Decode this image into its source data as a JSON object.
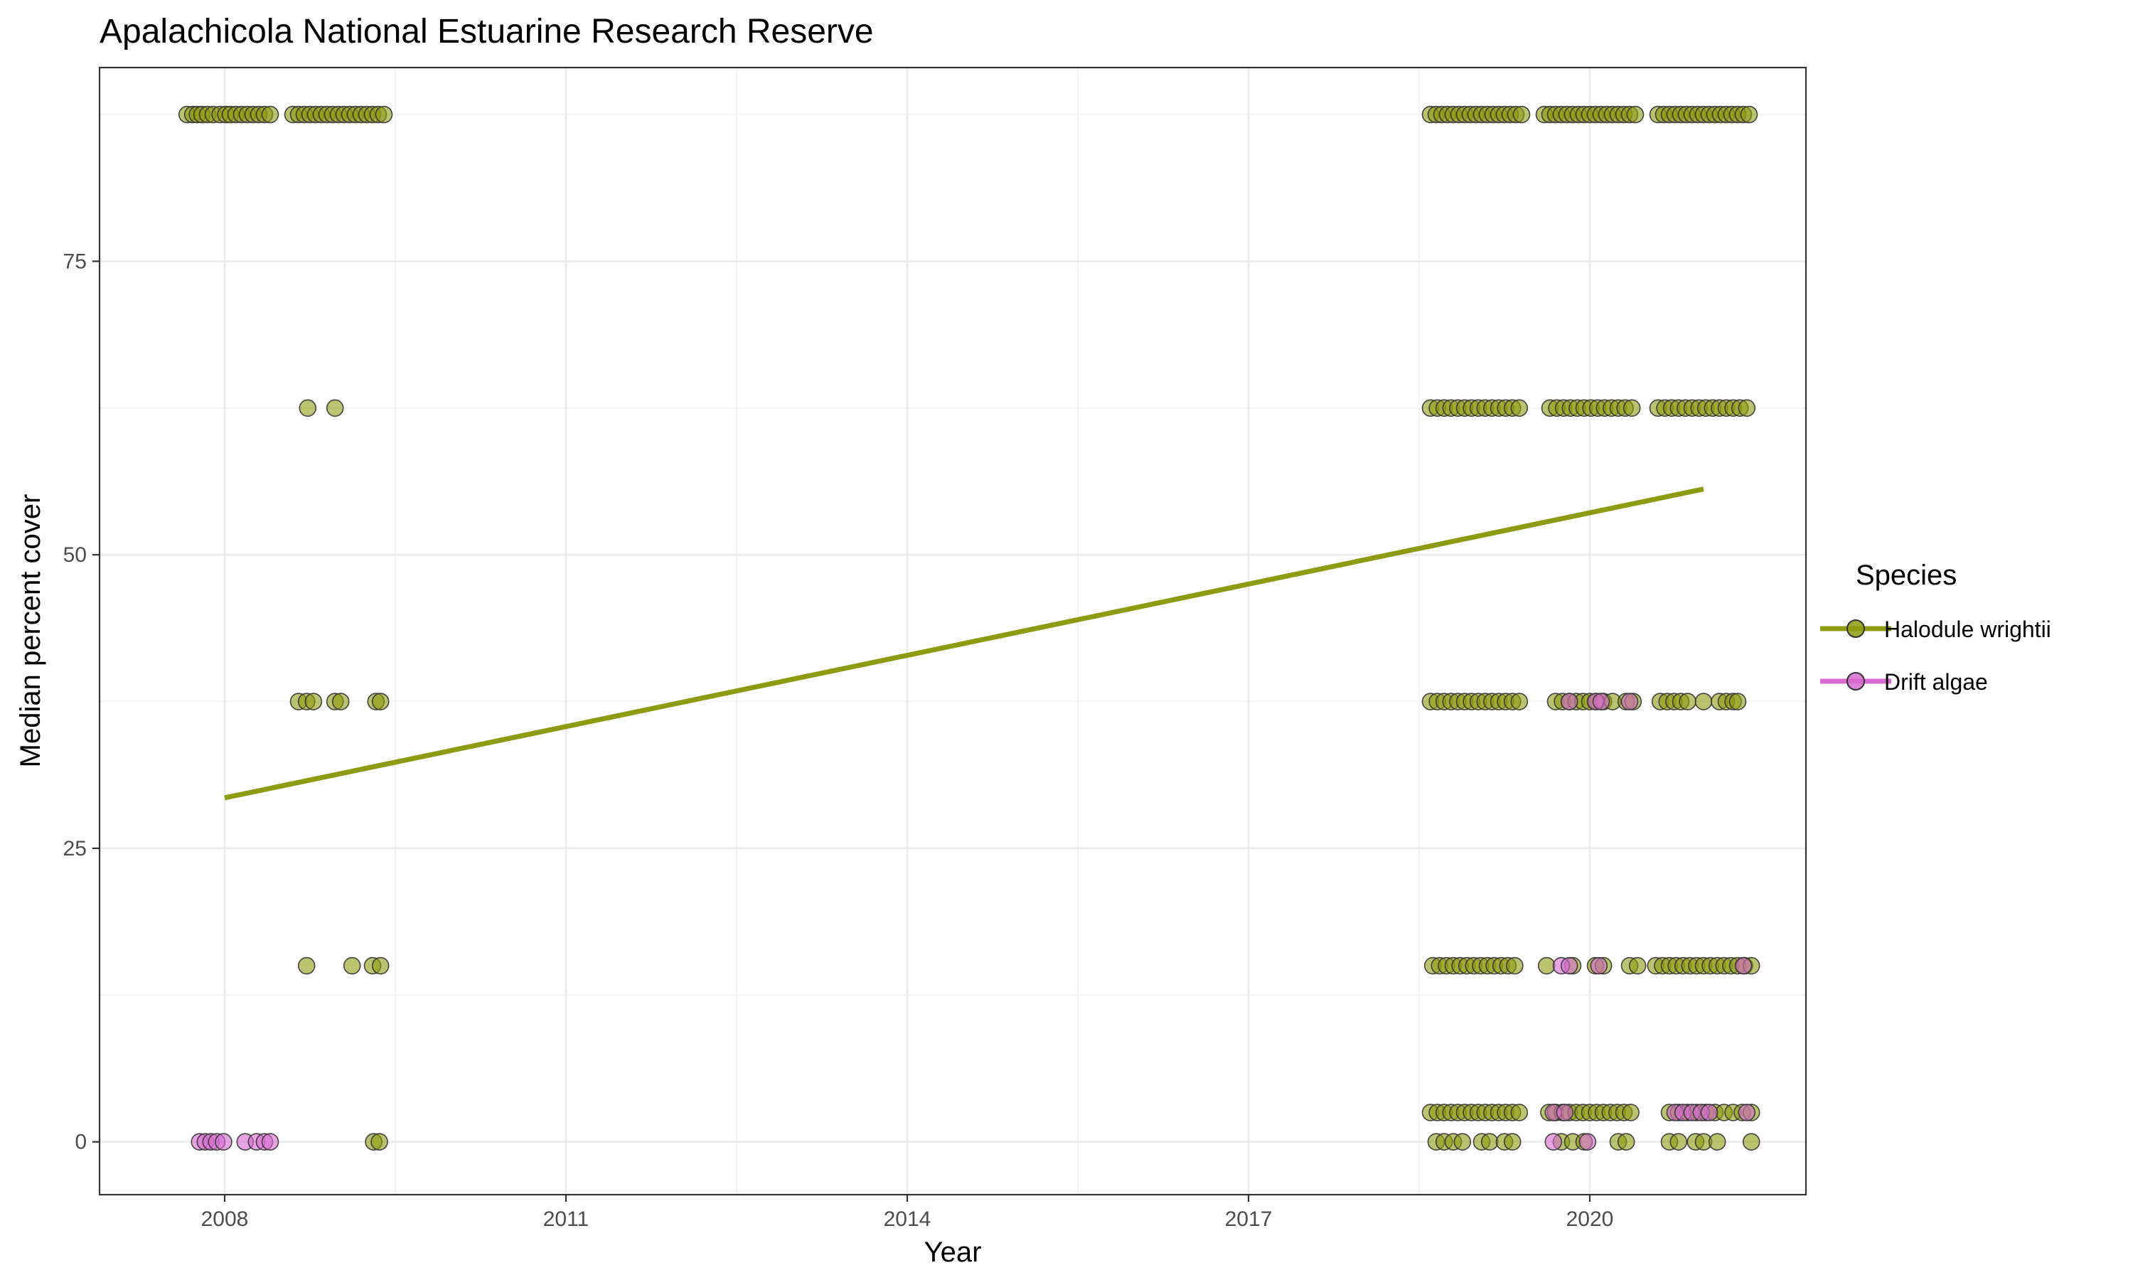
{
  "chart_data": {
    "type": "scatter",
    "title": "Apalachicola National Estuarine Research Reserve",
    "xlabel": "Year",
    "ylabel": "Median percent cover",
    "xlim": [
      2006.9,
      2021.9
    ],
    "ylim": [
      -4.5,
      91.5
    ],
    "x_ticks": [
      2008,
      2011,
      2014,
      2017,
      2020
    ],
    "y_ticks": [
      0,
      25,
      50,
      75
    ],
    "grid": true,
    "legend": {
      "title": "Species",
      "position": "right"
    },
    "colors": {
      "halodule": "#8c9b0f",
      "algae": "#d76bd0",
      "outline": "#333333"
    },
    "series": [
      {
        "name": "Halodule wrightii",
        "color": "#8c9b0f",
        "trend": {
          "x": [
            2008.0,
            2021.0
          ],
          "y": [
            29.3,
            55.6
          ]
        },
        "points": [
          [
            2007.67,
            87.5
          ],
          [
            2007.72,
            87.5
          ],
          [
            2007.76,
            87.5
          ],
          [
            2007.8,
            87.5
          ],
          [
            2007.85,
            87.5
          ],
          [
            2007.9,
            87.5
          ],
          [
            2007.96,
            87.5
          ],
          [
            2008.01,
            87.5
          ],
          [
            2008.05,
            87.5
          ],
          [
            2008.1,
            87.5
          ],
          [
            2008.15,
            87.5
          ],
          [
            2008.2,
            87.5
          ],
          [
            2008.25,
            87.5
          ],
          [
            2008.3,
            87.5
          ],
          [
            2008.35,
            87.5
          ],
          [
            2008.4,
            87.5
          ],
          [
            2008.6,
            87.5
          ],
          [
            2008.65,
            87.5
          ],
          [
            2008.7,
            87.5
          ],
          [
            2008.75,
            87.5
          ],
          [
            2008.8,
            87.5
          ],
          [
            2008.85,
            87.5
          ],
          [
            2008.9,
            87.5
          ],
          [
            2008.95,
            87.5
          ],
          [
            2009.0,
            87.5
          ],
          [
            2009.05,
            87.5
          ],
          [
            2009.1,
            87.5
          ],
          [
            2009.15,
            87.5
          ],
          [
            2009.2,
            87.5
          ],
          [
            2009.25,
            87.5
          ],
          [
            2009.3,
            87.5
          ],
          [
            2009.35,
            87.5
          ],
          [
            2009.4,
            87.5
          ],
          [
            2008.73,
            62.5
          ],
          [
            2008.97,
            62.5
          ],
          [
            2008.65,
            37.5
          ],
          [
            2008.72,
            37.5
          ],
          [
            2008.78,
            37.5
          ],
          [
            2008.97,
            37.5
          ],
          [
            2009.02,
            37.5
          ],
          [
            2009.33,
            37.5
          ],
          [
            2009.37,
            37.5
          ],
          [
            2008.72,
            15
          ],
          [
            2009.12,
            15
          ],
          [
            2009.3,
            15
          ],
          [
            2009.37,
            15
          ],
          [
            2009.31,
            0
          ],
          [
            2009.36,
            0
          ],
          [
            2018.6,
            87.5
          ],
          [
            2018.65,
            87.5
          ],
          [
            2018.7,
            87.5
          ],
          [
            2018.75,
            87.5
          ],
          [
            2018.8,
            87.5
          ],
          [
            2018.85,
            87.5
          ],
          [
            2018.9,
            87.5
          ],
          [
            2018.95,
            87.5
          ],
          [
            2019.0,
            87.5
          ],
          [
            2019.05,
            87.5
          ],
          [
            2019.1,
            87.5
          ],
          [
            2019.15,
            87.5
          ],
          [
            2019.2,
            87.5
          ],
          [
            2019.25,
            87.5
          ],
          [
            2019.3,
            87.5
          ],
          [
            2019.35,
            87.5
          ],
          [
            2019.4,
            87.5
          ],
          [
            2019.6,
            87.5
          ],
          [
            2019.65,
            87.5
          ],
          [
            2019.7,
            87.5
          ],
          [
            2019.75,
            87.5
          ],
          [
            2019.8,
            87.5
          ],
          [
            2019.85,
            87.5
          ],
          [
            2019.9,
            87.5
          ],
          [
            2019.95,
            87.5
          ],
          [
            2020.0,
            87.5
          ],
          [
            2020.05,
            87.5
          ],
          [
            2020.1,
            87.5
          ],
          [
            2020.15,
            87.5
          ],
          [
            2020.2,
            87.5
          ],
          [
            2020.25,
            87.5
          ],
          [
            2020.3,
            87.5
          ],
          [
            2020.35,
            87.5
          ],
          [
            2020.4,
            87.5
          ],
          [
            2020.6,
            87.5
          ],
          [
            2020.65,
            87.5
          ],
          [
            2020.7,
            87.5
          ],
          [
            2020.75,
            87.5
          ],
          [
            2020.8,
            87.5
          ],
          [
            2020.85,
            87.5
          ],
          [
            2020.9,
            87.5
          ],
          [
            2020.95,
            87.5
          ],
          [
            2021.0,
            87.5
          ],
          [
            2021.05,
            87.5
          ],
          [
            2021.1,
            87.5
          ],
          [
            2021.15,
            87.5
          ],
          [
            2021.2,
            87.5
          ],
          [
            2021.25,
            87.5
          ],
          [
            2021.3,
            87.5
          ],
          [
            2021.35,
            87.5
          ],
          [
            2021.4,
            87.5
          ],
          [
            2018.6,
            62.5
          ],
          [
            2018.66,
            62.5
          ],
          [
            2018.72,
            62.5
          ],
          [
            2018.78,
            62.5
          ],
          [
            2018.84,
            62.5
          ],
          [
            2018.9,
            62.5
          ],
          [
            2018.96,
            62.5
          ],
          [
            2019.02,
            62.5
          ],
          [
            2019.08,
            62.5
          ],
          [
            2019.14,
            62.5
          ],
          [
            2019.2,
            62.5
          ],
          [
            2019.26,
            62.5
          ],
          [
            2019.32,
            62.5
          ],
          [
            2019.38,
            62.5
          ],
          [
            2019.65,
            62.5
          ],
          [
            2019.71,
            62.5
          ],
          [
            2019.77,
            62.5
          ],
          [
            2019.83,
            62.5
          ],
          [
            2019.89,
            62.5
          ],
          [
            2019.95,
            62.5
          ],
          [
            2020.01,
            62.5
          ],
          [
            2020.07,
            62.5
          ],
          [
            2020.13,
            62.5
          ],
          [
            2020.19,
            62.5
          ],
          [
            2020.25,
            62.5
          ],
          [
            2020.31,
            62.5
          ],
          [
            2020.37,
            62.5
          ],
          [
            2020.6,
            62.5
          ],
          [
            2020.66,
            62.5
          ],
          [
            2020.72,
            62.5
          ],
          [
            2020.78,
            62.5
          ],
          [
            2020.84,
            62.5
          ],
          [
            2020.9,
            62.5
          ],
          [
            2020.96,
            62.5
          ],
          [
            2021.02,
            62.5
          ],
          [
            2021.08,
            62.5
          ],
          [
            2021.14,
            62.5
          ],
          [
            2021.2,
            62.5
          ],
          [
            2021.26,
            62.5
          ],
          [
            2021.32,
            62.5
          ],
          [
            2021.38,
            62.5
          ],
          [
            2018.6,
            37.5
          ],
          [
            2018.66,
            37.5
          ],
          [
            2018.72,
            37.5
          ],
          [
            2018.78,
            37.5
          ],
          [
            2018.84,
            37.5
          ],
          [
            2018.9,
            37.5
          ],
          [
            2018.96,
            37.5
          ],
          [
            2019.02,
            37.5
          ],
          [
            2019.08,
            37.5
          ],
          [
            2019.14,
            37.5
          ],
          [
            2019.2,
            37.5
          ],
          [
            2019.26,
            37.5
          ],
          [
            2019.32,
            37.5
          ],
          [
            2019.38,
            37.5
          ],
          [
            2019.7,
            37.5
          ],
          [
            2019.76,
            37.5
          ],
          [
            2019.82,
            37.5
          ],
          [
            2019.88,
            37.5
          ],
          [
            2019.94,
            37.5
          ],
          [
            2020.0,
            37.5
          ],
          [
            2020.06,
            37.5
          ],
          [
            2020.12,
            37.5
          ],
          [
            2020.2,
            37.5
          ],
          [
            2020.32,
            37.5
          ],
          [
            2020.38,
            37.5
          ],
          [
            2020.62,
            37.5
          ],
          [
            2020.68,
            37.5
          ],
          [
            2020.74,
            37.5
          ],
          [
            2020.8,
            37.5
          ],
          [
            2020.86,
            37.5
          ],
          [
            2021.0,
            37.5
          ],
          [
            2021.14,
            37.5
          ],
          [
            2021.2,
            37.5
          ],
          [
            2021.26,
            37.5
          ],
          [
            2021.3,
            37.5
          ],
          [
            2018.62,
            15
          ],
          [
            2018.68,
            15
          ],
          [
            2018.74,
            15
          ],
          [
            2018.8,
            15
          ],
          [
            2018.86,
            15
          ],
          [
            2018.92,
            15
          ],
          [
            2018.98,
            15
          ],
          [
            2019.04,
            15
          ],
          [
            2019.1,
            15
          ],
          [
            2019.16,
            15
          ],
          [
            2019.22,
            15
          ],
          [
            2019.28,
            15
          ],
          [
            2019.34,
            15
          ],
          [
            2019.62,
            15
          ],
          [
            2019.85,
            15
          ],
          [
            2020.05,
            15
          ],
          [
            2020.12,
            15
          ],
          [
            2020.35,
            15
          ],
          [
            2020.42,
            15
          ],
          [
            2020.58,
            15
          ],
          [
            2020.64,
            15
          ],
          [
            2020.7,
            15
          ],
          [
            2020.76,
            15
          ],
          [
            2020.82,
            15
          ],
          [
            2020.88,
            15
          ],
          [
            2020.94,
            15
          ],
          [
            2021.0,
            15
          ],
          [
            2021.06,
            15
          ],
          [
            2021.12,
            15
          ],
          [
            2021.18,
            15
          ],
          [
            2021.24,
            15
          ],
          [
            2021.3,
            15
          ],
          [
            2021.36,
            15
          ],
          [
            2021.42,
            15
          ],
          [
            2018.6,
            2.5
          ],
          [
            2018.66,
            2.5
          ],
          [
            2018.72,
            2.5
          ],
          [
            2018.78,
            2.5
          ],
          [
            2018.84,
            2.5
          ],
          [
            2018.9,
            2.5
          ],
          [
            2018.96,
            2.5
          ],
          [
            2019.02,
            2.5
          ],
          [
            2019.08,
            2.5
          ],
          [
            2019.14,
            2.5
          ],
          [
            2019.2,
            2.5
          ],
          [
            2019.26,
            2.5
          ],
          [
            2019.32,
            2.5
          ],
          [
            2019.38,
            2.5
          ],
          [
            2019.64,
            2.5
          ],
          [
            2019.7,
            2.5
          ],
          [
            2019.76,
            2.5
          ],
          [
            2019.82,
            2.5
          ],
          [
            2019.88,
            2.5
          ],
          [
            2019.94,
            2.5
          ],
          [
            2020.0,
            2.5
          ],
          [
            2020.06,
            2.5
          ],
          [
            2020.12,
            2.5
          ],
          [
            2020.18,
            2.5
          ],
          [
            2020.24,
            2.5
          ],
          [
            2020.3,
            2.5
          ],
          [
            2020.36,
            2.5
          ],
          [
            2020.7,
            2.5
          ],
          [
            2020.78,
            2.5
          ],
          [
            2020.86,
            2.5
          ],
          [
            2020.94,
            2.5
          ],
          [
            2021.02,
            2.5
          ],
          [
            2021.1,
            2.5
          ],
          [
            2021.18,
            2.5
          ],
          [
            2021.26,
            2.5
          ],
          [
            2021.34,
            2.5
          ],
          [
            2021.42,
            2.5
          ],
          [
            2018.65,
            0
          ],
          [
            2018.72,
            0
          ],
          [
            2018.8,
            0
          ],
          [
            2018.88,
            0
          ],
          [
            2019.05,
            0
          ],
          [
            2019.12,
            0
          ],
          [
            2019.25,
            0
          ],
          [
            2019.32,
            0
          ],
          [
            2019.75,
            0
          ],
          [
            2019.85,
            0
          ],
          [
            2019.95,
            0
          ],
          [
            2020.25,
            0
          ],
          [
            2020.32,
            0
          ],
          [
            2020.7,
            0
          ],
          [
            2020.78,
            0
          ],
          [
            2020.93,
            0
          ],
          [
            2021.0,
            0
          ],
          [
            2021.12,
            0
          ],
          [
            2021.42,
            0
          ]
        ]
      },
      {
        "name": "Drift algae",
        "color": "#d76bd0",
        "points": [
          [
            2007.78,
            0
          ],
          [
            2007.83,
            0
          ],
          [
            2007.88,
            0
          ],
          [
            2007.93,
            0
          ],
          [
            2007.99,
            0
          ],
          [
            2008.18,
            0
          ],
          [
            2008.28,
            0
          ],
          [
            2008.35,
            0
          ],
          [
            2008.4,
            0
          ],
          [
            2019.75,
            15
          ],
          [
            2019.82,
            15
          ],
          [
            2020.08,
            15
          ],
          [
            2021.35,
            15
          ],
          [
            2019.68,
            2.5
          ],
          [
            2019.78,
            2.5
          ],
          [
            2020.75,
            2.5
          ],
          [
            2020.82,
            2.5
          ],
          [
            2020.9,
            2.5
          ],
          [
            2020.98,
            2.5
          ],
          [
            2021.05,
            2.5
          ],
          [
            2021.38,
            2.5
          ],
          [
            2019.82,
            37.5
          ],
          [
            2020.05,
            37.5
          ],
          [
            2020.1,
            37.5
          ],
          [
            2020.35,
            37.5
          ],
          [
            2019.68,
            0
          ],
          [
            2019.98,
            0
          ]
        ]
      }
    ]
  }
}
